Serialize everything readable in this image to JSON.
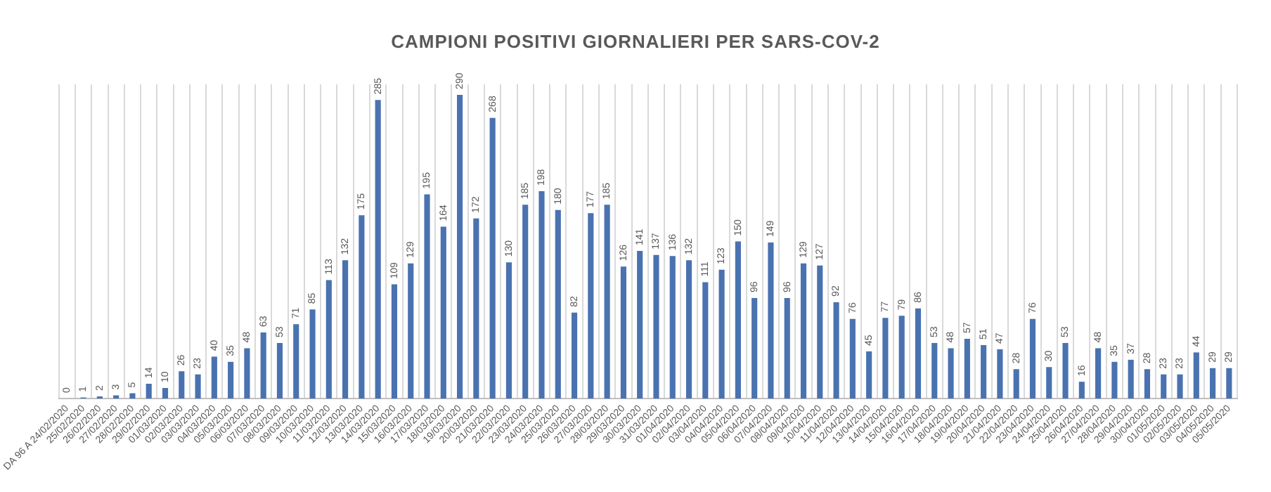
{
  "chart_data": {
    "type": "bar",
    "title": "CAMPIONI POSITIVI GIORNALIERI PER SARS-COV-2",
    "categories": [
      "DA 96 A 24/02/2020",
      "25/02/2020",
      "26/02/2020",
      "27/02/2020",
      "28/02/2020",
      "29/02/2020",
      "01/03/2020",
      "02/03/2020",
      "03/03/2020",
      "04/03/2020",
      "05/03/2020",
      "06/03/2020",
      "07/03/2020",
      "08/03/2020",
      "09/03/2020",
      "10/03/2020",
      "11/03/2020",
      "12/03/2020",
      "13/03/2020",
      "14/03/2020",
      "15/03/2020",
      "16/03/2020",
      "17/03/2020",
      "18/03/2020",
      "19/03/2020",
      "20/03/2020",
      "21/03/2020",
      "22/03/2020",
      "23/03/2020",
      "24/03/2020",
      "25/03/2020",
      "26/03/2020",
      "27/03/2020",
      "28/03/2020",
      "29/03/2020",
      "30/03/2020",
      "31/03/2020",
      "01/04/2020",
      "02/04/2020",
      "03/04/2020",
      "04/04/2020",
      "05/04/2020",
      "06/04/2020",
      "07/04/2020",
      "08/04/2020",
      "09/04/2020",
      "10/04/2020",
      "11/04/2020",
      "12/04/2020",
      "13/04/2020",
      "14/04/2020",
      "15/04/2020",
      "16/04/2020",
      "17/04/2020",
      "18/04/2020",
      "19/04/2020",
      "20/04/2020",
      "21/04/2020",
      "22/04/2020",
      "23/04/2020",
      "24/04/2020",
      "25/04/2020",
      "26/04/2020",
      "27/04/2020",
      "28/04/2020",
      "29/04/2020",
      "30/04/2020",
      "01/05/2020",
      "02/05/2020",
      "03/05/2020",
      "04/05/2020",
      "05/05/2020"
    ],
    "values": [
      0,
      1,
      2,
      3,
      5,
      14,
      10,
      26,
      23,
      40,
      35,
      48,
      63,
      53,
      71,
      85,
      113,
      132,
      175,
      285,
      109,
      129,
      195,
      164,
      290,
      172,
      268,
      130,
      185,
      198,
      180,
      82,
      177,
      185,
      126,
      141,
      137,
      136,
      132,
      111,
      123,
      150,
      96,
      149,
      96,
      129,
      127,
      92,
      76,
      45,
      77,
      79,
      86,
      53,
      48,
      57,
      51,
      47,
      28,
      76,
      30,
      53,
      16,
      48,
      35,
      37,
      28,
      23,
      23,
      44,
      29,
      29
    ],
    "color": "#4a72b0",
    "data_labels": true,
    "grid": "x",
    "legend": false
  }
}
